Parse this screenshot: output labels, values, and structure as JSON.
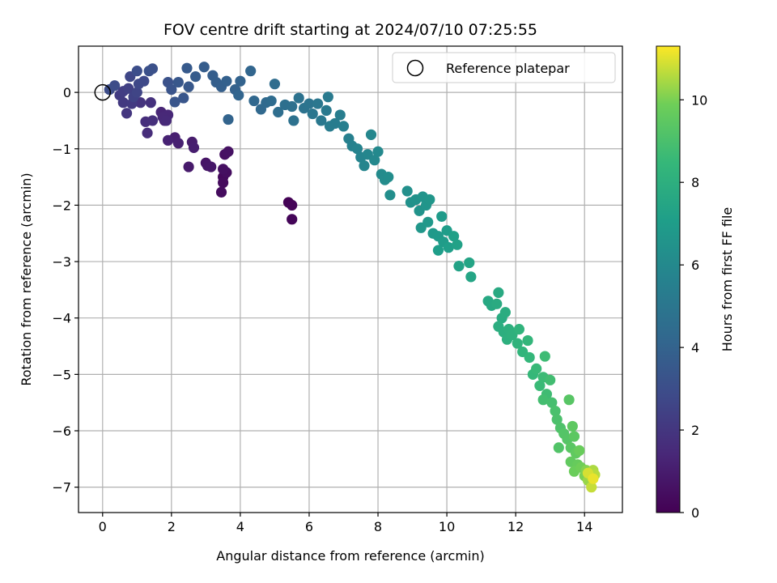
{
  "chart_data": {
    "type": "scatter",
    "title": "FOV centre drift starting at 2024/07/10 07:25:55",
    "xlabel": "Angular distance from reference (arcmin)",
    "ylabel": "Rotation from reference (arcmin)",
    "xlim": [
      -0.7,
      15.1
    ],
    "ylim": [
      -7.45,
      0.82
    ],
    "x_ticks": [
      0,
      2,
      4,
      6,
      8,
      10,
      12,
      14
    ],
    "y_ticks": [
      0,
      -1,
      -2,
      -3,
      -4,
      -5,
      -6,
      -7
    ],
    "x_tick_labels": [
      "0",
      "2",
      "4",
      "6",
      "8",
      "10",
      "12",
      "14"
    ],
    "y_tick_labels": [
      "0",
      "−1",
      "−2",
      "−3",
      "−4",
      "−5",
      "−6",
      "−7"
    ],
    "grid": true,
    "legend": {
      "position": "top-right",
      "entries": [
        "Reference platepar"
      ]
    },
    "reference_point": {
      "x": 0,
      "y": 0
    },
    "colorbar": {
      "label": "Hours from first FF file",
      "colormap": "viridis",
      "range": [
        0,
        11.3
      ],
      "ticks": [
        0,
        2,
        4,
        6,
        8,
        10
      ],
      "tick_labels": [
        "0",
        "2",
        "4",
        "6",
        "8",
        "10"
      ]
    },
    "points": [
      {
        "x": 5.4,
        "y": -1.95,
        "h": 0.05
      },
      {
        "x": 5.5,
        "y": -2.0,
        "h": 0.1
      },
      {
        "x": 5.5,
        "y": -2.25,
        "h": 0.15
      },
      {
        "x": 3.5,
        "y": -1.5,
        "h": 0.3
      },
      {
        "x": 3.5,
        "y": -1.6,
        "h": 0.35
      },
      {
        "x": 3.45,
        "y": -1.77,
        "h": 0.4
      },
      {
        "x": 3.6,
        "y": -1.42,
        "h": 0.45
      },
      {
        "x": 3.5,
        "y": -1.36,
        "h": 0.5
      },
      {
        "x": 3.55,
        "y": -1.1,
        "h": 0.55
      },
      {
        "x": 3.65,
        "y": -1.05,
        "h": 0.6
      },
      {
        "x": 3.0,
        "y": -1.25,
        "h": 0.7
      },
      {
        "x": 3.05,
        "y": -1.3,
        "h": 0.75
      },
      {
        "x": 3.15,
        "y": -1.32,
        "h": 0.8
      },
      {
        "x": 2.5,
        "y": -1.32,
        "h": 0.9
      },
      {
        "x": 2.6,
        "y": -0.88,
        "h": 1.0
      },
      {
        "x": 2.65,
        "y": -0.98,
        "h": 1.05
      },
      {
        "x": 2.1,
        "y": -0.8,
        "h": 1.1
      },
      {
        "x": 2.2,
        "y": -0.9,
        "h": 1.15
      },
      {
        "x": 1.9,
        "y": -0.85,
        "h": 1.2
      },
      {
        "x": 1.8,
        "y": -0.5,
        "h": 1.3
      },
      {
        "x": 1.7,
        "y": -0.35,
        "h": 1.35
      },
      {
        "x": 1.9,
        "y": -0.4,
        "h": 1.4
      },
      {
        "x": 1.75,
        "y": -0.44,
        "h": 1.45
      },
      {
        "x": 1.85,
        "y": -0.5,
        "h": 1.5
      },
      {
        "x": 1.3,
        "y": -0.72,
        "h": 1.6
      },
      {
        "x": 1.25,
        "y": -0.52,
        "h": 1.65
      },
      {
        "x": 1.45,
        "y": -0.5,
        "h": 1.7
      },
      {
        "x": 1.4,
        "y": -0.18,
        "h": 1.8
      },
      {
        "x": 1.1,
        "y": -0.18,
        "h": 1.9
      },
      {
        "x": 0.7,
        "y": -0.37,
        "h": 2.0
      },
      {
        "x": 0.6,
        "y": -0.18,
        "h": 2.1
      },
      {
        "x": 0.85,
        "y": -0.2,
        "h": 2.15
      },
      {
        "x": 0.5,
        "y": -0.05,
        "h": 2.2
      },
      {
        "x": 0.6,
        "y": 0.02,
        "h": 2.3
      },
      {
        "x": 0.75,
        "y": 0.07,
        "h": 2.4
      },
      {
        "x": 0.9,
        "y": -0.08,
        "h": 2.5
      },
      {
        "x": 1.0,
        "y": 0.0,
        "h": 2.6
      },
      {
        "x": 0.8,
        "y": 0.28,
        "h": 2.7
      },
      {
        "x": 1.05,
        "y": 0.15,
        "h": 2.75
      },
      {
        "x": 1.2,
        "y": 0.2,
        "h": 2.8
      },
      {
        "x": 0.35,
        "y": 0.12,
        "h": 2.9
      },
      {
        "x": 0.2,
        "y": 0.05,
        "h": 2.95
      },
      {
        "x": 1.0,
        "y": 0.38,
        "h": 3.0
      },
      {
        "x": 1.35,
        "y": 0.38,
        "h": 3.1
      },
      {
        "x": 1.45,
        "y": 0.42,
        "h": 3.15
      },
      {
        "x": 1.9,
        "y": 0.18,
        "h": 3.2
      },
      {
        "x": 2.0,
        "y": 0.05,
        "h": 3.3
      },
      {
        "x": 2.1,
        "y": -0.17,
        "h": 3.35
      },
      {
        "x": 2.35,
        "y": -0.1,
        "h": 3.4
      },
      {
        "x": 2.2,
        "y": 0.18,
        "h": 3.45
      },
      {
        "x": 2.5,
        "y": 0.1,
        "h": 3.5
      },
      {
        "x": 2.45,
        "y": 0.43,
        "h": 3.6
      },
      {
        "x": 2.7,
        "y": 0.28,
        "h": 3.65
      },
      {
        "x": 2.95,
        "y": 0.45,
        "h": 3.7
      },
      {
        "x": 3.2,
        "y": 0.3,
        "h": 3.75
      },
      {
        "x": 3.3,
        "y": 0.18,
        "h": 3.8
      },
      {
        "x": 3.45,
        "y": 0.1,
        "h": 3.85
      },
      {
        "x": 3.6,
        "y": 0.2,
        "h": 3.9
      },
      {
        "x": 3.85,
        "y": 0.05,
        "h": 3.95
      },
      {
        "x": 4.0,
        "y": 0.2,
        "h": 4.0
      },
      {
        "x": 3.65,
        "y": -0.48,
        "h": 4.05
      },
      {
        "x": 3.95,
        "y": -0.05,
        "h": 4.1
      },
      {
        "x": 4.3,
        "y": 0.38,
        "h": 4.15
      },
      {
        "x": 4.4,
        "y": -0.15,
        "h": 4.25
      },
      {
        "x": 4.6,
        "y": -0.3,
        "h": 4.3
      },
      {
        "x": 4.75,
        "y": -0.18,
        "h": 4.35
      },
      {
        "x": 4.9,
        "y": -0.15,
        "h": 4.45
      },
      {
        "x": 5.0,
        "y": 0.15,
        "h": 4.5
      },
      {
        "x": 5.1,
        "y": -0.35,
        "h": 4.55
      },
      {
        "x": 5.3,
        "y": -0.22,
        "h": 4.6
      },
      {
        "x": 5.5,
        "y": -0.25,
        "h": 4.65
      },
      {
        "x": 5.55,
        "y": -0.5,
        "h": 4.7
      },
      {
        "x": 5.7,
        "y": -0.1,
        "h": 4.8
      },
      {
        "x": 5.85,
        "y": -0.28,
        "h": 4.85
      },
      {
        "x": 6.0,
        "y": -0.2,
        "h": 4.9
      },
      {
        "x": 6.1,
        "y": -0.38,
        "h": 5.0
      },
      {
        "x": 6.25,
        "y": -0.2,
        "h": 5.05
      },
      {
        "x": 6.35,
        "y": -0.5,
        "h": 5.1
      },
      {
        "x": 6.5,
        "y": -0.32,
        "h": 5.15
      },
      {
        "x": 6.55,
        "y": -0.08,
        "h": 5.2
      },
      {
        "x": 6.6,
        "y": -0.6,
        "h": 5.3
      },
      {
        "x": 6.75,
        "y": -0.55,
        "h": 5.35
      },
      {
        "x": 6.9,
        "y": -0.4,
        "h": 5.4
      },
      {
        "x": 7.0,
        "y": -0.6,
        "h": 5.5
      },
      {
        "x": 7.15,
        "y": -0.82,
        "h": 5.55
      },
      {
        "x": 7.25,
        "y": -0.95,
        "h": 5.6
      },
      {
        "x": 7.4,
        "y": -1.0,
        "h": 5.7
      },
      {
        "x": 7.5,
        "y": -1.15,
        "h": 5.75
      },
      {
        "x": 7.6,
        "y": -1.3,
        "h": 5.8
      },
      {
        "x": 7.7,
        "y": -1.1,
        "h": 5.85
      },
      {
        "x": 7.8,
        "y": -0.75,
        "h": 5.9
      },
      {
        "x": 7.9,
        "y": -1.2,
        "h": 5.95
      },
      {
        "x": 8.0,
        "y": -1.05,
        "h": 6.0
      },
      {
        "x": 8.1,
        "y": -1.45,
        "h": 6.1
      },
      {
        "x": 8.2,
        "y": -1.55,
        "h": 6.15
      },
      {
        "x": 8.3,
        "y": -1.5,
        "h": 6.2
      },
      {
        "x": 8.35,
        "y": -1.82,
        "h": 6.25
      },
      {
        "x": 8.85,
        "y": -1.75,
        "h": 6.35
      },
      {
        "x": 8.95,
        "y": -1.95,
        "h": 6.4
      },
      {
        "x": 9.1,
        "y": -1.9,
        "h": 6.45
      },
      {
        "x": 9.2,
        "y": -2.1,
        "h": 6.5
      },
      {
        "x": 9.3,
        "y": -1.85,
        "h": 6.55
      },
      {
        "x": 9.4,
        "y": -2.0,
        "h": 6.6
      },
      {
        "x": 9.5,
        "y": -1.9,
        "h": 6.65
      },
      {
        "x": 9.25,
        "y": -2.4,
        "h": 6.7
      },
      {
        "x": 9.45,
        "y": -2.3,
        "h": 6.75
      },
      {
        "x": 9.6,
        "y": -2.5,
        "h": 6.8
      },
      {
        "x": 9.75,
        "y": -2.55,
        "h": 6.85
      },
      {
        "x": 9.85,
        "y": -2.2,
        "h": 6.9
      },
      {
        "x": 9.9,
        "y": -2.65,
        "h": 6.95
      },
      {
        "x": 10.0,
        "y": -2.45,
        "h": 7.0
      },
      {
        "x": 9.75,
        "y": -2.8,
        "h": 7.05
      },
      {
        "x": 10.05,
        "y": -2.75,
        "h": 7.1
      },
      {
        "x": 10.2,
        "y": -2.55,
        "h": 7.2
      },
      {
        "x": 10.3,
        "y": -2.7,
        "h": 7.25
      },
      {
        "x": 10.35,
        "y": -3.08,
        "h": 7.3
      },
      {
        "x": 10.65,
        "y": -3.02,
        "h": 7.4
      },
      {
        "x": 10.7,
        "y": -3.27,
        "h": 7.45
      },
      {
        "x": 11.2,
        "y": -3.7,
        "h": 7.6
      },
      {
        "x": 11.3,
        "y": -3.78,
        "h": 7.65
      },
      {
        "x": 11.5,
        "y": -3.55,
        "h": 7.7
      },
      {
        "x": 11.45,
        "y": -3.75,
        "h": 7.75
      },
      {
        "x": 11.6,
        "y": -4.0,
        "h": 7.8
      },
      {
        "x": 11.7,
        "y": -3.9,
        "h": 7.85
      },
      {
        "x": 11.5,
        "y": -4.15,
        "h": 7.9
      },
      {
        "x": 11.65,
        "y": -4.25,
        "h": 7.95
      },
      {
        "x": 11.8,
        "y": -4.2,
        "h": 8.0
      },
      {
        "x": 11.75,
        "y": -4.38,
        "h": 8.05
      },
      {
        "x": 11.9,
        "y": -4.3,
        "h": 8.1
      },
      {
        "x": 12.05,
        "y": -4.45,
        "h": 8.2
      },
      {
        "x": 12.1,
        "y": -4.2,
        "h": 8.25
      },
      {
        "x": 12.2,
        "y": -4.6,
        "h": 8.3
      },
      {
        "x": 12.35,
        "y": -4.4,
        "h": 8.35
      },
      {
        "x": 12.4,
        "y": -4.7,
        "h": 8.4
      },
      {
        "x": 12.5,
        "y": -5.0,
        "h": 8.45
      },
      {
        "x": 12.6,
        "y": -4.9,
        "h": 8.55
      },
      {
        "x": 12.7,
        "y": -5.2,
        "h": 8.6
      },
      {
        "x": 12.8,
        "y": -5.05,
        "h": 8.65
      },
      {
        "x": 12.85,
        "y": -4.68,
        "h": 8.7
      },
      {
        "x": 12.9,
        "y": -5.35,
        "h": 8.75
      },
      {
        "x": 13.0,
        "y": -5.1,
        "h": 8.8
      },
      {
        "x": 12.8,
        "y": -5.45,
        "h": 8.85
      },
      {
        "x": 13.05,
        "y": -5.5,
        "h": 8.9
      },
      {
        "x": 13.15,
        "y": -5.65,
        "h": 9.0
      },
      {
        "x": 13.2,
        "y": -5.8,
        "h": 9.05
      },
      {
        "x": 13.3,
        "y": -5.95,
        "h": 9.1
      },
      {
        "x": 13.25,
        "y": -6.3,
        "h": 9.2
      },
      {
        "x": 13.4,
        "y": -6.05,
        "h": 9.25
      },
      {
        "x": 13.5,
        "y": -6.15,
        "h": 9.3
      },
      {
        "x": 13.55,
        "y": -5.45,
        "h": 9.35
      },
      {
        "x": 13.6,
        "y": -6.3,
        "h": 9.4
      },
      {
        "x": 13.7,
        "y": -6.1,
        "h": 9.45
      },
      {
        "x": 13.65,
        "y": -5.92,
        "h": 9.5
      },
      {
        "x": 13.75,
        "y": -6.4,
        "h": 9.55
      },
      {
        "x": 13.6,
        "y": -6.55,
        "h": 9.6
      },
      {
        "x": 13.8,
        "y": -6.6,
        "h": 9.7
      },
      {
        "x": 13.85,
        "y": -6.35,
        "h": 9.75
      },
      {
        "x": 13.7,
        "y": -6.72,
        "h": 9.8
      },
      {
        "x": 13.9,
        "y": -6.65,
        "h": 9.9
      },
      {
        "x": 14.0,
        "y": -6.8,
        "h": 10.0
      },
      {
        "x": 14.05,
        "y": -6.7,
        "h": 10.1
      },
      {
        "x": 14.15,
        "y": -6.75,
        "h": 10.2
      },
      {
        "x": 14.1,
        "y": -6.88,
        "h": 10.3
      },
      {
        "x": 14.2,
        "y": -6.82,
        "h": 10.4
      },
      {
        "x": 14.25,
        "y": -6.7,
        "h": 10.5
      },
      {
        "x": 14.3,
        "y": -6.78,
        "h": 10.6
      },
      {
        "x": 14.2,
        "y": -7.0,
        "h": 10.75
      },
      {
        "x": 14.1,
        "y": -6.75,
        "h": 10.9
      },
      {
        "x": 14.25,
        "y": -6.85,
        "h": 11.1
      }
    ]
  }
}
